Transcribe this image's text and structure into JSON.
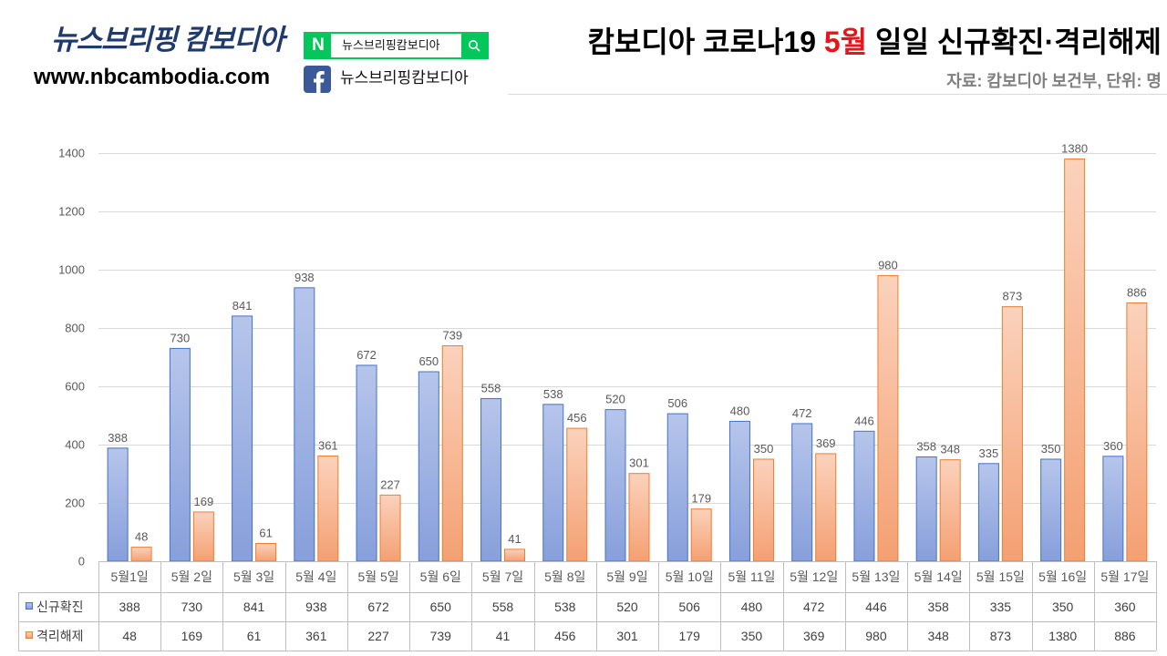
{
  "header": {
    "logo_text": "뉴스브리핑 캄보디아",
    "site_url": "www.nbcambodia.com",
    "naver_badge": {
      "logo_letter": "N",
      "query": "뉴스브리핑캄보디아",
      "button_icon": "search-icon"
    },
    "facebook_badge": {
      "icon": "facebook-icon",
      "label": "뉴스브리핑캄보디아"
    }
  },
  "colors": {
    "logo": "#1f3a6d",
    "naver_green": "#03c75a",
    "facebook_blue": "#3b5998",
    "title_highlight": "#e8141b",
    "source_text": "#7f7f7f"
  },
  "chart_data": {
    "type": "bar",
    "title": "캄보디아 코로나19 5월 일일 신규확진·격리해제",
    "title_highlight": "5월",
    "subtitle": "자료: 캄보디아 보건부, 단위: 명",
    "categories": [
      "5월1일",
      "5월 2일",
      "5월 3일",
      "5월 4일",
      "5월 5일",
      "5월 6일",
      "5월 7일",
      "5월 8일",
      "5월 9일",
      "5월 10일",
      "5월 11일",
      "5월 12일",
      "5월 13일",
      "5월 14일",
      "5월 15일",
      "5월 16일",
      "5월 17일"
    ],
    "series": [
      {
        "name": "신규확진",
        "color": "#4472c4",
        "gradient": [
          "#b6c5eb",
          "#879fdb"
        ],
        "values": [
          388,
          730,
          841,
          938,
          672,
          650,
          558,
          538,
          520,
          506,
          480,
          472,
          446,
          358,
          335,
          350,
          360
        ]
      },
      {
        "name": "격리해제",
        "color": "#ed7d31",
        "gradient": [
          "#fbd2bc",
          "#f4a072"
        ],
        "values": [
          48,
          169,
          61,
          361,
          227,
          739,
          41,
          456,
          301,
          179,
          350,
          369,
          980,
          348,
          873,
          1380,
          886
        ]
      }
    ],
    "ylim": [
      0,
      1400
    ],
    "yticks": [
      0,
      200,
      400,
      600,
      800,
      1000,
      1200,
      1400
    ],
    "grid": true,
    "data_labels": true,
    "data_table": true,
    "legend": "bottom-left"
  }
}
